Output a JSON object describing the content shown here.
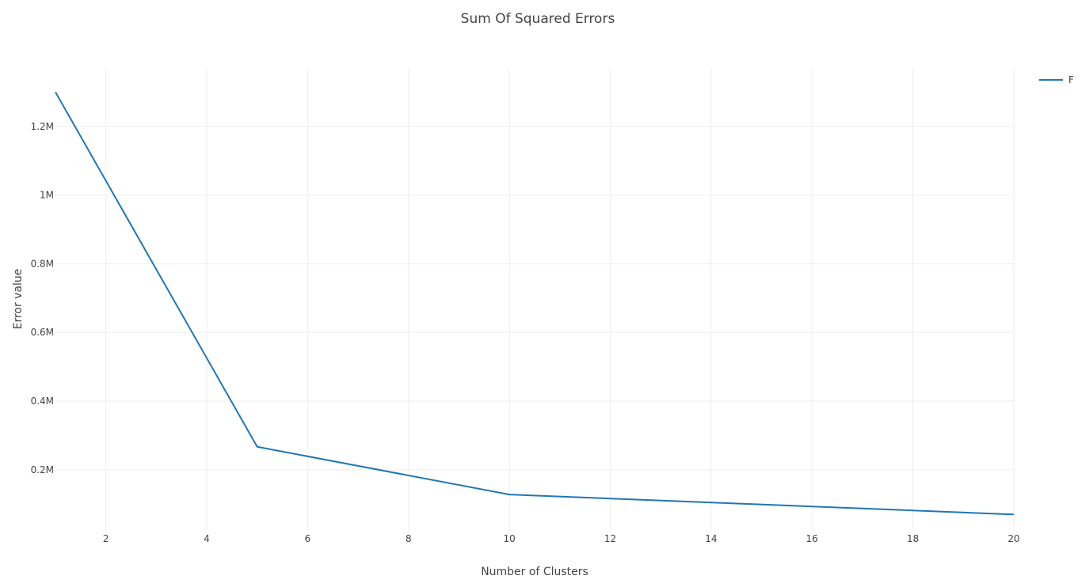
{
  "chart_data": {
    "type": "line",
    "title": "Sum Of Squared Errors",
    "xlabel": "Number of Clusters",
    "ylabel": "Error value",
    "xlim": [
      1,
      20
    ],
    "ylim": [
      0.02,
      1.37
    ],
    "x_ticks": [
      2,
      4,
      6,
      8,
      10,
      12,
      14,
      16,
      18,
      20
    ],
    "x_tick_labels": [
      "2",
      "4",
      "6",
      "8",
      "10",
      "12",
      "14",
      "16",
      "18",
      "20"
    ],
    "y_ticks": [
      0.2,
      0.4,
      0.6,
      0.8,
      1.0,
      1.2
    ],
    "y_tick_labels": [
      "0.2M",
      "0.4M",
      "0.6M",
      "0.8M",
      "1M",
      "1.2M"
    ],
    "y_unit": "millions",
    "grid": true,
    "legend_position": "top-right",
    "series": [
      {
        "name": "F",
        "color": "#1f77b4",
        "x": [
          1,
          5,
          10,
          20
        ],
        "values": [
          1.3,
          0.267,
          0.128,
          0.07
        ]
      }
    ]
  }
}
